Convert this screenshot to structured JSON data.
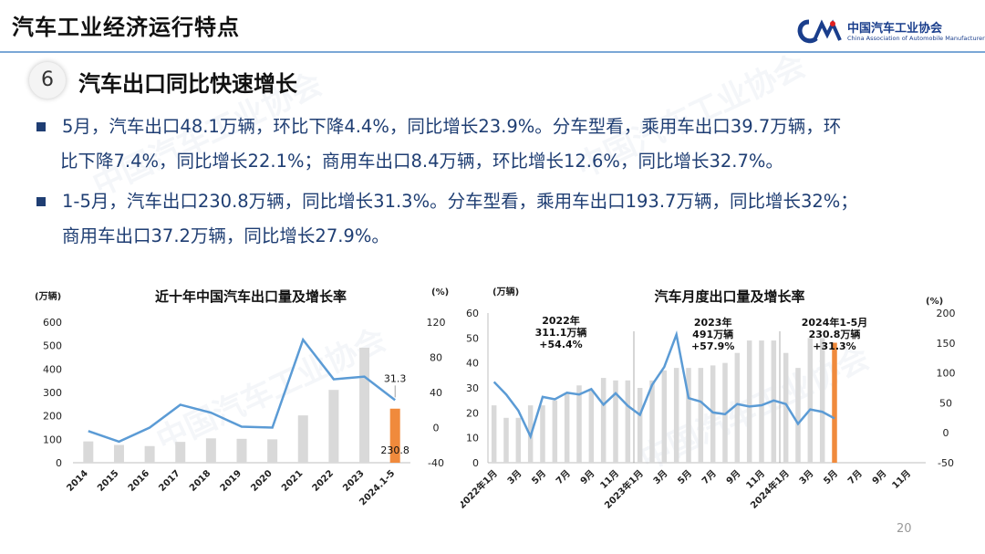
{
  "header": {
    "title": "汽车工业经济运行特点"
  },
  "logo": {
    "cn": "中国汽车工业协会",
    "en": "China Association of Automobile Manufacturers",
    "watermark": "中国汽车工业协会"
  },
  "section": {
    "number": "6",
    "title": "汽车出口同比快速增长"
  },
  "paragraphs": [
    {
      "line1": "5月，汽车出口48.1万辆，环比下降4.4%，同比增长23.9%。分车型看，乘用车出口39.7万辆，环",
      "line2": "比下降7.4%，同比增长22.1%；商用车出口8.4万辆，环比增长12.6%，同比增长32.7%。"
    },
    {
      "line1": "1-5月，汽车出口230.8万辆，同比增长31.3%。分车型看，乘用车出口193.7万辆，同比增长32%；",
      "line2": "商用车出口37.2万辆，同比增长27.9%。"
    }
  ],
  "page_number": "20",
  "colors": {
    "bar": "#d9d9d9",
    "bar_highlight": "#f08a3c",
    "line": "#5b9bd5",
    "text_blue": "#1f3e73"
  },
  "chart_data": [
    {
      "type": "bar",
      "title": "近十年中国汽车出口量及增长率",
      "left_unit": "(万辆)",
      "right_unit": "(%)",
      "categories": [
        "2014",
        "2015",
        "2016",
        "2017",
        "2018",
        "2019",
        "2020",
        "2021",
        "2022",
        "2023",
        "2024.1-5"
      ],
      "ylim": [
        0,
        600
      ],
      "y_ticks": [
        0,
        100,
        200,
        300,
        400,
        500,
        600
      ],
      "y2lim": [
        -40,
        120
      ],
      "y2_ticks": [
        -40,
        0,
        40,
        80,
        120
      ],
      "series": [
        {
          "axis": "left",
          "values": [
            91,
            76,
            71,
            89,
            104,
            102,
            100,
            202,
            311,
            491,
            230.8
          ]
        },
        {
          "axis": "right",
          "values": [
            -4,
            -16,
            0,
            26,
            17,
            1,
            0,
            100,
            55,
            58,
            31.3
          ]
        }
      ],
      "labels": {
        "growth_last": "31.3",
        "volume_last": "230.8"
      }
    },
    {
      "type": "bar",
      "title": "汽车月度出口量及增长率",
      "left_unit": "(万辆)",
      "right_unit": "(%)",
      "x_ticks": [
        "2022年1月",
        "3月",
        "5月",
        "7月",
        "9月",
        "11月",
        "2023年1月",
        "3月",
        "5月",
        "7月",
        "9月",
        "11月",
        "2024年1月",
        "3月",
        "5月",
        "7月",
        "9月",
        "11月"
      ],
      "ylim": [
        0,
        60
      ],
      "y_ticks": [
        0,
        10,
        20,
        30,
        40,
        50,
        60
      ],
      "y2lim": [
        -50,
        200
      ],
      "y2_ticks": [
        -50,
        0,
        50,
        100,
        150,
        200
      ],
      "series": [
        {
          "axis": "left",
          "values": [
            23,
            18,
            18,
            23,
            23,
            25,
            28,
            31,
            29,
            34,
            33,
            33,
            30,
            33,
            37,
            38,
            38,
            38,
            39,
            40,
            44,
            49,
            49,
            49,
            44,
            38,
            50,
            50,
            48.1
          ]
        },
        {
          "axis": "right",
          "values": [
            85,
            64,
            37,
            -6,
            60,
            56,
            67,
            64,
            73,
            47,
            66,
            45,
            30,
            80,
            110,
            164,
            58,
            52,
            34,
            31,
            48,
            44,
            46,
            54,
            48,
            15,
            39,
            35,
            24
          ]
        }
      ],
      "annotations": [
        {
          "line1": "2022年",
          "line2": "311.1万辆",
          "line3": "+54.4%"
        },
        {
          "line1": "2023年",
          "line2": "491万辆",
          "line3": "+57.9%"
        },
        {
          "line1": "2024年1-5月",
          "line2": "230.8万辆",
          "line3": "+31.3%"
        }
      ]
    }
  ]
}
